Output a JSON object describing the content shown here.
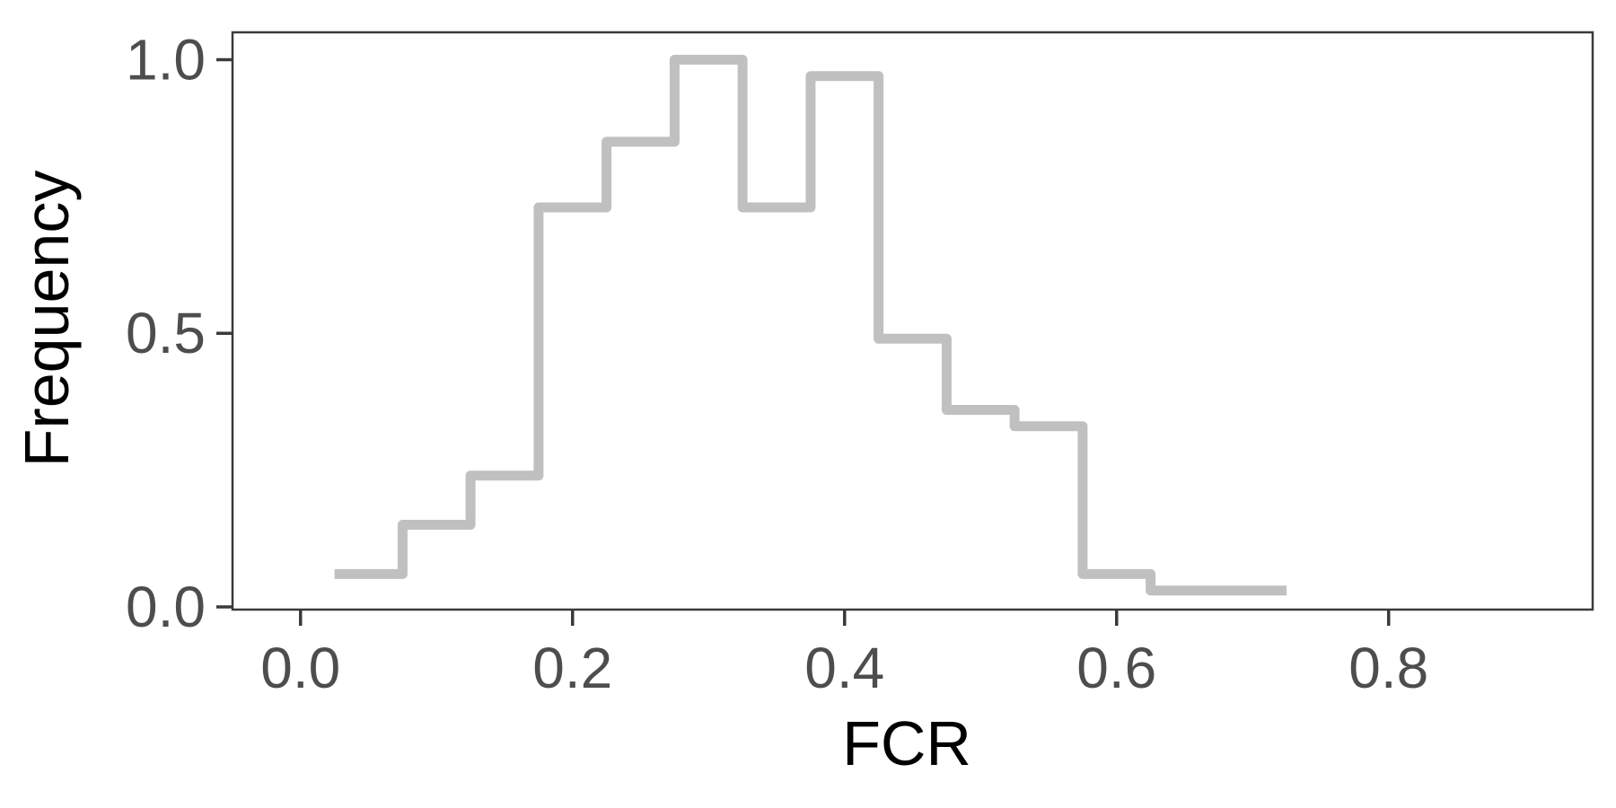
{
  "chart_data": {
    "type": "line",
    "style": "step-histogram",
    "title": "",
    "xlabel": "FCR",
    "ylabel": "Frequency",
    "xlim": [
      -0.05,
      0.95
    ],
    "ylim": [
      -0.005,
      1.05
    ],
    "x_ticks": [
      0.0,
      0.2,
      0.4,
      0.6,
      0.8
    ],
    "x_tick_labels": [
      "0.0",
      "0.2",
      "0.4",
      "0.6",
      "0.8"
    ],
    "y_ticks": [
      0.0,
      0.5,
      1.0
    ],
    "y_tick_labels": [
      "0.0",
      "0.5",
      "1.0"
    ],
    "grid": false,
    "legend": "none",
    "bin_width": 0.05,
    "series": [
      {
        "bins": [
          {
            "x0": 0.025,
            "x1": 0.075,
            "y": 0.06
          },
          {
            "x0": 0.075,
            "x1": 0.125,
            "y": 0.15
          },
          {
            "x0": 0.125,
            "x1": 0.175,
            "y": 0.24
          },
          {
            "x0": 0.175,
            "x1": 0.225,
            "y": 0.73
          },
          {
            "x0": 0.225,
            "x1": 0.275,
            "y": 0.85
          },
          {
            "x0": 0.275,
            "x1": 0.325,
            "y": 1.0
          },
          {
            "x0": 0.325,
            "x1": 0.375,
            "y": 0.73
          },
          {
            "x0": 0.375,
            "x1": 0.425,
            "y": 0.97
          },
          {
            "x0": 0.425,
            "x1": 0.475,
            "y": 0.49
          },
          {
            "x0": 0.475,
            "x1": 0.525,
            "y": 0.36
          },
          {
            "x0": 0.525,
            "x1": 0.575,
            "y": 0.33
          },
          {
            "x0": 0.575,
            "x1": 0.625,
            "y": 0.06
          },
          {
            "x0": 0.625,
            "x1": 0.725,
            "y": 0.03
          }
        ]
      }
    ]
  },
  "colors": {
    "line": "#c0c0c0",
    "frame": "#3a3a3a",
    "tick_text": "#4d4d4d",
    "title_text": "#000000",
    "background": "#ffffff"
  }
}
